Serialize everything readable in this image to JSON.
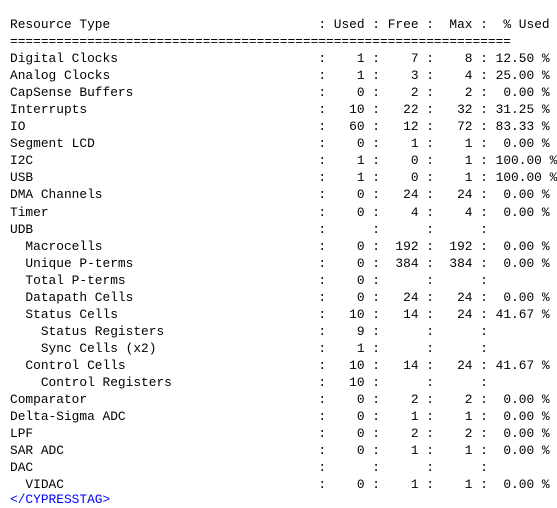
{
  "header": {
    "label": "Resource Type",
    "used": "Used",
    "free": "Free",
    "max": "Max",
    "pct": "% Used"
  },
  "rule": "=================================================================",
  "rows": [
    {
      "label": "Digital Clocks",
      "indent": 0,
      "used": "1",
      "free": "7",
      "max": "8",
      "pct": "12.50 %"
    },
    {
      "label": "Analog Clocks",
      "indent": 0,
      "used": "1",
      "free": "3",
      "max": "4",
      "pct": "25.00 %"
    },
    {
      "label": "CapSense Buffers",
      "indent": 0,
      "used": "0",
      "free": "2",
      "max": "2",
      "pct": "0.00 %"
    },
    {
      "label": "Interrupts",
      "indent": 0,
      "used": "10",
      "free": "22",
      "max": "32",
      "pct": "31.25 %"
    },
    {
      "label": "IO",
      "indent": 0,
      "used": "60",
      "free": "12",
      "max": "72",
      "pct": "83.33 %"
    },
    {
      "label": "Segment LCD",
      "indent": 0,
      "used": "0",
      "free": "1",
      "max": "1",
      "pct": "0.00 %"
    },
    {
      "label": "I2C",
      "indent": 0,
      "used": "1",
      "free": "0",
      "max": "1",
      "pct": "100.00 %"
    },
    {
      "label": "USB",
      "indent": 0,
      "used": "1",
      "free": "0",
      "max": "1",
      "pct": "100.00 %"
    },
    {
      "label": "DMA Channels",
      "indent": 0,
      "used": "0",
      "free": "24",
      "max": "24",
      "pct": "0.00 %"
    },
    {
      "label": "Timer",
      "indent": 0,
      "used": "0",
      "free": "4",
      "max": "4",
      "pct": "0.00 %"
    },
    {
      "label": "UDB",
      "indent": 0,
      "used": "",
      "free": "",
      "max": "",
      "pct": ""
    },
    {
      "label": "Macrocells",
      "indent": 2,
      "used": "0",
      "free": "192",
      "max": "192",
      "pct": "0.00 %"
    },
    {
      "label": "Unique P-terms",
      "indent": 2,
      "used": "0",
      "free": "384",
      "max": "384",
      "pct": "0.00 %"
    },
    {
      "label": "Total P-terms",
      "indent": 2,
      "used": "0",
      "free": "",
      "max": "",
      "pct": ""
    },
    {
      "label": "Datapath Cells",
      "indent": 2,
      "used": "0",
      "free": "24",
      "max": "24",
      "pct": "0.00 %"
    },
    {
      "label": "Status Cells",
      "indent": 2,
      "used": "10",
      "free": "14",
      "max": "24",
      "pct": "41.67 %"
    },
    {
      "label": "Status Registers",
      "indent": 4,
      "used": "9",
      "free": "",
      "max": "",
      "pct": ""
    },
    {
      "label": "Sync Cells (x2)",
      "indent": 4,
      "used": "1",
      "free": "",
      "max": "",
      "pct": ""
    },
    {
      "label": "Control Cells",
      "indent": 2,
      "used": "10",
      "free": "14",
      "max": "24",
      "pct": "41.67 %"
    },
    {
      "label": "Control Registers",
      "indent": 4,
      "used": "10",
      "free": "",
      "max": "",
      "pct": ""
    },
    {
      "label": "Comparator",
      "indent": 0,
      "used": "0",
      "free": "2",
      "max": "2",
      "pct": "0.00 %"
    },
    {
      "label": "Delta-Sigma ADC",
      "indent": 0,
      "used": "0",
      "free": "1",
      "max": "1",
      "pct": "0.00 %"
    },
    {
      "label": "LPF",
      "indent": 0,
      "used": "0",
      "free": "2",
      "max": "2",
      "pct": "0.00 %"
    },
    {
      "label": "SAR ADC",
      "indent": 0,
      "used": "0",
      "free": "1",
      "max": "1",
      "pct": "0.00 %"
    },
    {
      "label": "DAC",
      "indent": 0,
      "used": "",
      "free": "",
      "max": "",
      "pct": ""
    },
    {
      "label": "VIDAC",
      "indent": 2,
      "used": "0",
      "free": "1",
      "max": "1",
      "pct": "0.00 %"
    }
  ],
  "closing_tag": "</CYPRESSTAG>",
  "colors": {
    "text": "#000000",
    "tag": "#0000ff",
    "background": "#ffffff"
  }
}
